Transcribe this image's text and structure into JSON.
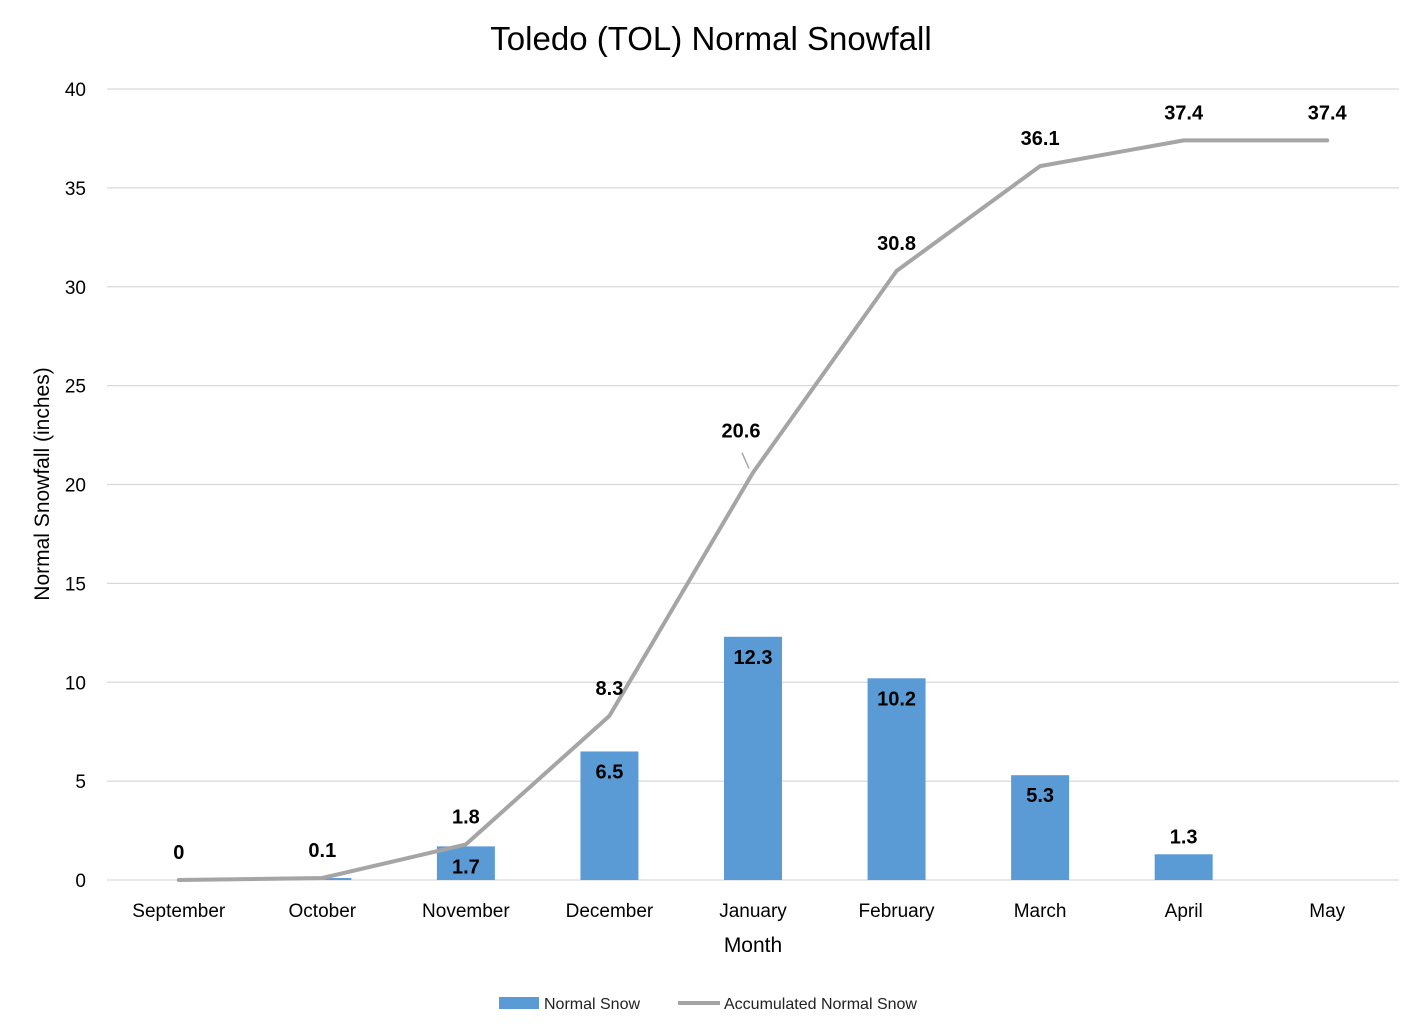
{
  "chart_data": {
    "type": "bar",
    "title": "Toledo (TOL) Normal Snowfall",
    "xlabel": "Month",
    "ylabel": "Normal Snowfall (inches)",
    "ylim": [
      0,
      40
    ],
    "yticks": [
      "0",
      "5",
      "10",
      "15",
      "20",
      "25",
      "30",
      "35",
      "40"
    ],
    "grid": true,
    "legend_position": "bottom",
    "categories": [
      "September",
      "October",
      "November",
      "December",
      "January",
      "February",
      "March",
      "April",
      "May"
    ],
    "series": [
      {
        "name": "Normal Snow",
        "type": "bar",
        "color": "#5B9BD5",
        "values": [
          0,
          0.1,
          1.7,
          6.5,
          12.3,
          10.2,
          5.3,
          1.3,
          0
        ]
      },
      {
        "name": "Accumulated Normal Snow",
        "type": "line",
        "color": "#A5A5A5",
        "values": [
          0,
          0.1,
          1.8,
          8.3,
          20.6,
          30.8,
          36.1,
          37.4,
          37.4
        ]
      }
    ]
  }
}
